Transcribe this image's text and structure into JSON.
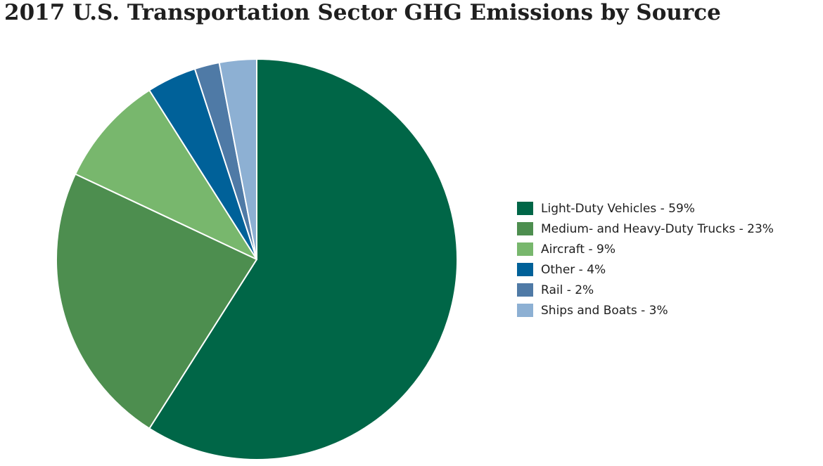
{
  "chart_data": {
    "type": "pie",
    "title": "2017 U.S. Transportation Sector GHG Emissions by Source",
    "legend_position": "right",
    "slices": [
      {
        "label": "Light-Duty Vehicles - 59%",
        "value": 59,
        "color": "#006647"
      },
      {
        "label": "Medium- and Heavy-Duty Trucks - 23%",
        "value": 23,
        "color": "#4d8e4f"
      },
      {
        "label": "Aircraft - 9%",
        "value": 9,
        "color": "#78b76d"
      },
      {
        "label": "Other - 4%",
        "value": 4,
        "color": "#006199"
      },
      {
        "label": "Rail - 2%",
        "value": 2,
        "color": "#4f7aa6"
      },
      {
        "label": "Ships and Boats - 3%",
        "value": 3,
        "color": "#8db0d3"
      }
    ]
  }
}
